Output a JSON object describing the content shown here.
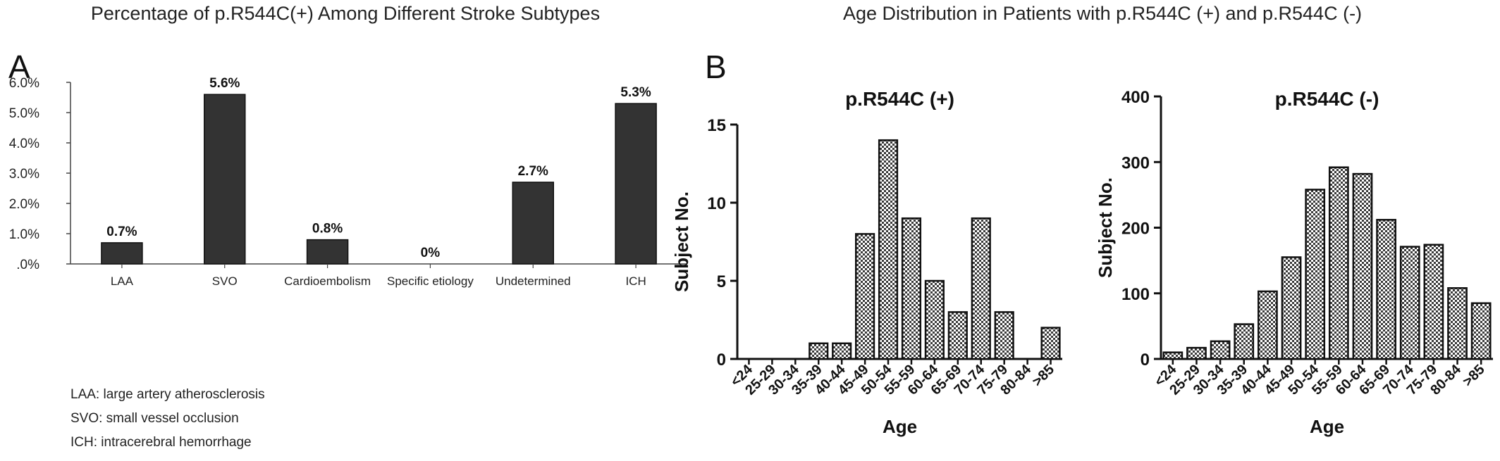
{
  "colors": {
    "bar_a": "#333333",
    "bar_b_fill": "#9a9a9a",
    "axis": "#111111"
  },
  "chart_data": [
    {
      "type": "bar",
      "title": "Percentage of p.R544C(+) Among Different Stroke Subtypes",
      "panel": "A",
      "categories": [
        "LAA",
        "SVO",
        "Cardioembolism",
        "Specific etiology",
        "Undetermined",
        "ICH"
      ],
      "values": [
        0.7,
        5.6,
        0.8,
        0,
        2.7,
        5.3
      ],
      "data_labels": [
        "0.7%",
        "5.6%",
        "0.8%",
        "0%",
        "2.7%",
        "5.3%"
      ],
      "xlabel": "",
      "ylabel": "",
      "ylim": [
        0,
        6
      ],
      "yticks": [
        ".0%",
        "1.0%",
        "2.0%",
        "3.0%",
        "4.0%",
        "5.0%",
        "6.0%"
      ],
      "footnotes": [
        "LAA: large  artery  atherosclerosis",
        "SVO: small  vessel  occlusion",
        "ICH: intracerebral  hemorrhage"
      ],
      "grid": false
    },
    {
      "type": "bar",
      "suptitle": "Age Distribution in Patients with p.R544C (+) and p.R544C (-)",
      "panel": "B",
      "title": "p.R544C (+)",
      "categories": [
        "<24",
        "25-29",
        "30-34",
        "35-39",
        "40-44",
        "45-49",
        "50-54",
        "55-59",
        "60-64",
        "65-69",
        "70-74",
        "75-79",
        "80-84",
        ">85"
      ],
      "values": [
        0,
        0,
        0,
        1,
        1,
        8,
        14,
        9,
        5,
        3,
        9,
        3,
        0,
        2
      ],
      "xlabel": "Age",
      "ylabel": "Subject No.",
      "ylim": [
        0,
        15
      ],
      "yticks": [
        "0",
        "5",
        "10",
        "15"
      ],
      "grid": false
    },
    {
      "type": "bar",
      "title": "p.R544C (-)",
      "categories": [
        "<24",
        "25-29",
        "30-34",
        "35-39",
        "40-44",
        "45-49",
        "50-54",
        "55-59",
        "60-64",
        "65-69",
        "70-74",
        "75-79",
        "80-84",
        ">85"
      ],
      "values": [
        10,
        17,
        27,
        53,
        103,
        155,
        258,
        292,
        282,
        212,
        171,
        174,
        108,
        85
      ],
      "xlabel": "Age",
      "ylabel": "Subject No.",
      "ylim": [
        0,
        400
      ],
      "yticks": [
        "0",
        "100",
        "200",
        "300",
        "400"
      ],
      "grid": false
    }
  ]
}
